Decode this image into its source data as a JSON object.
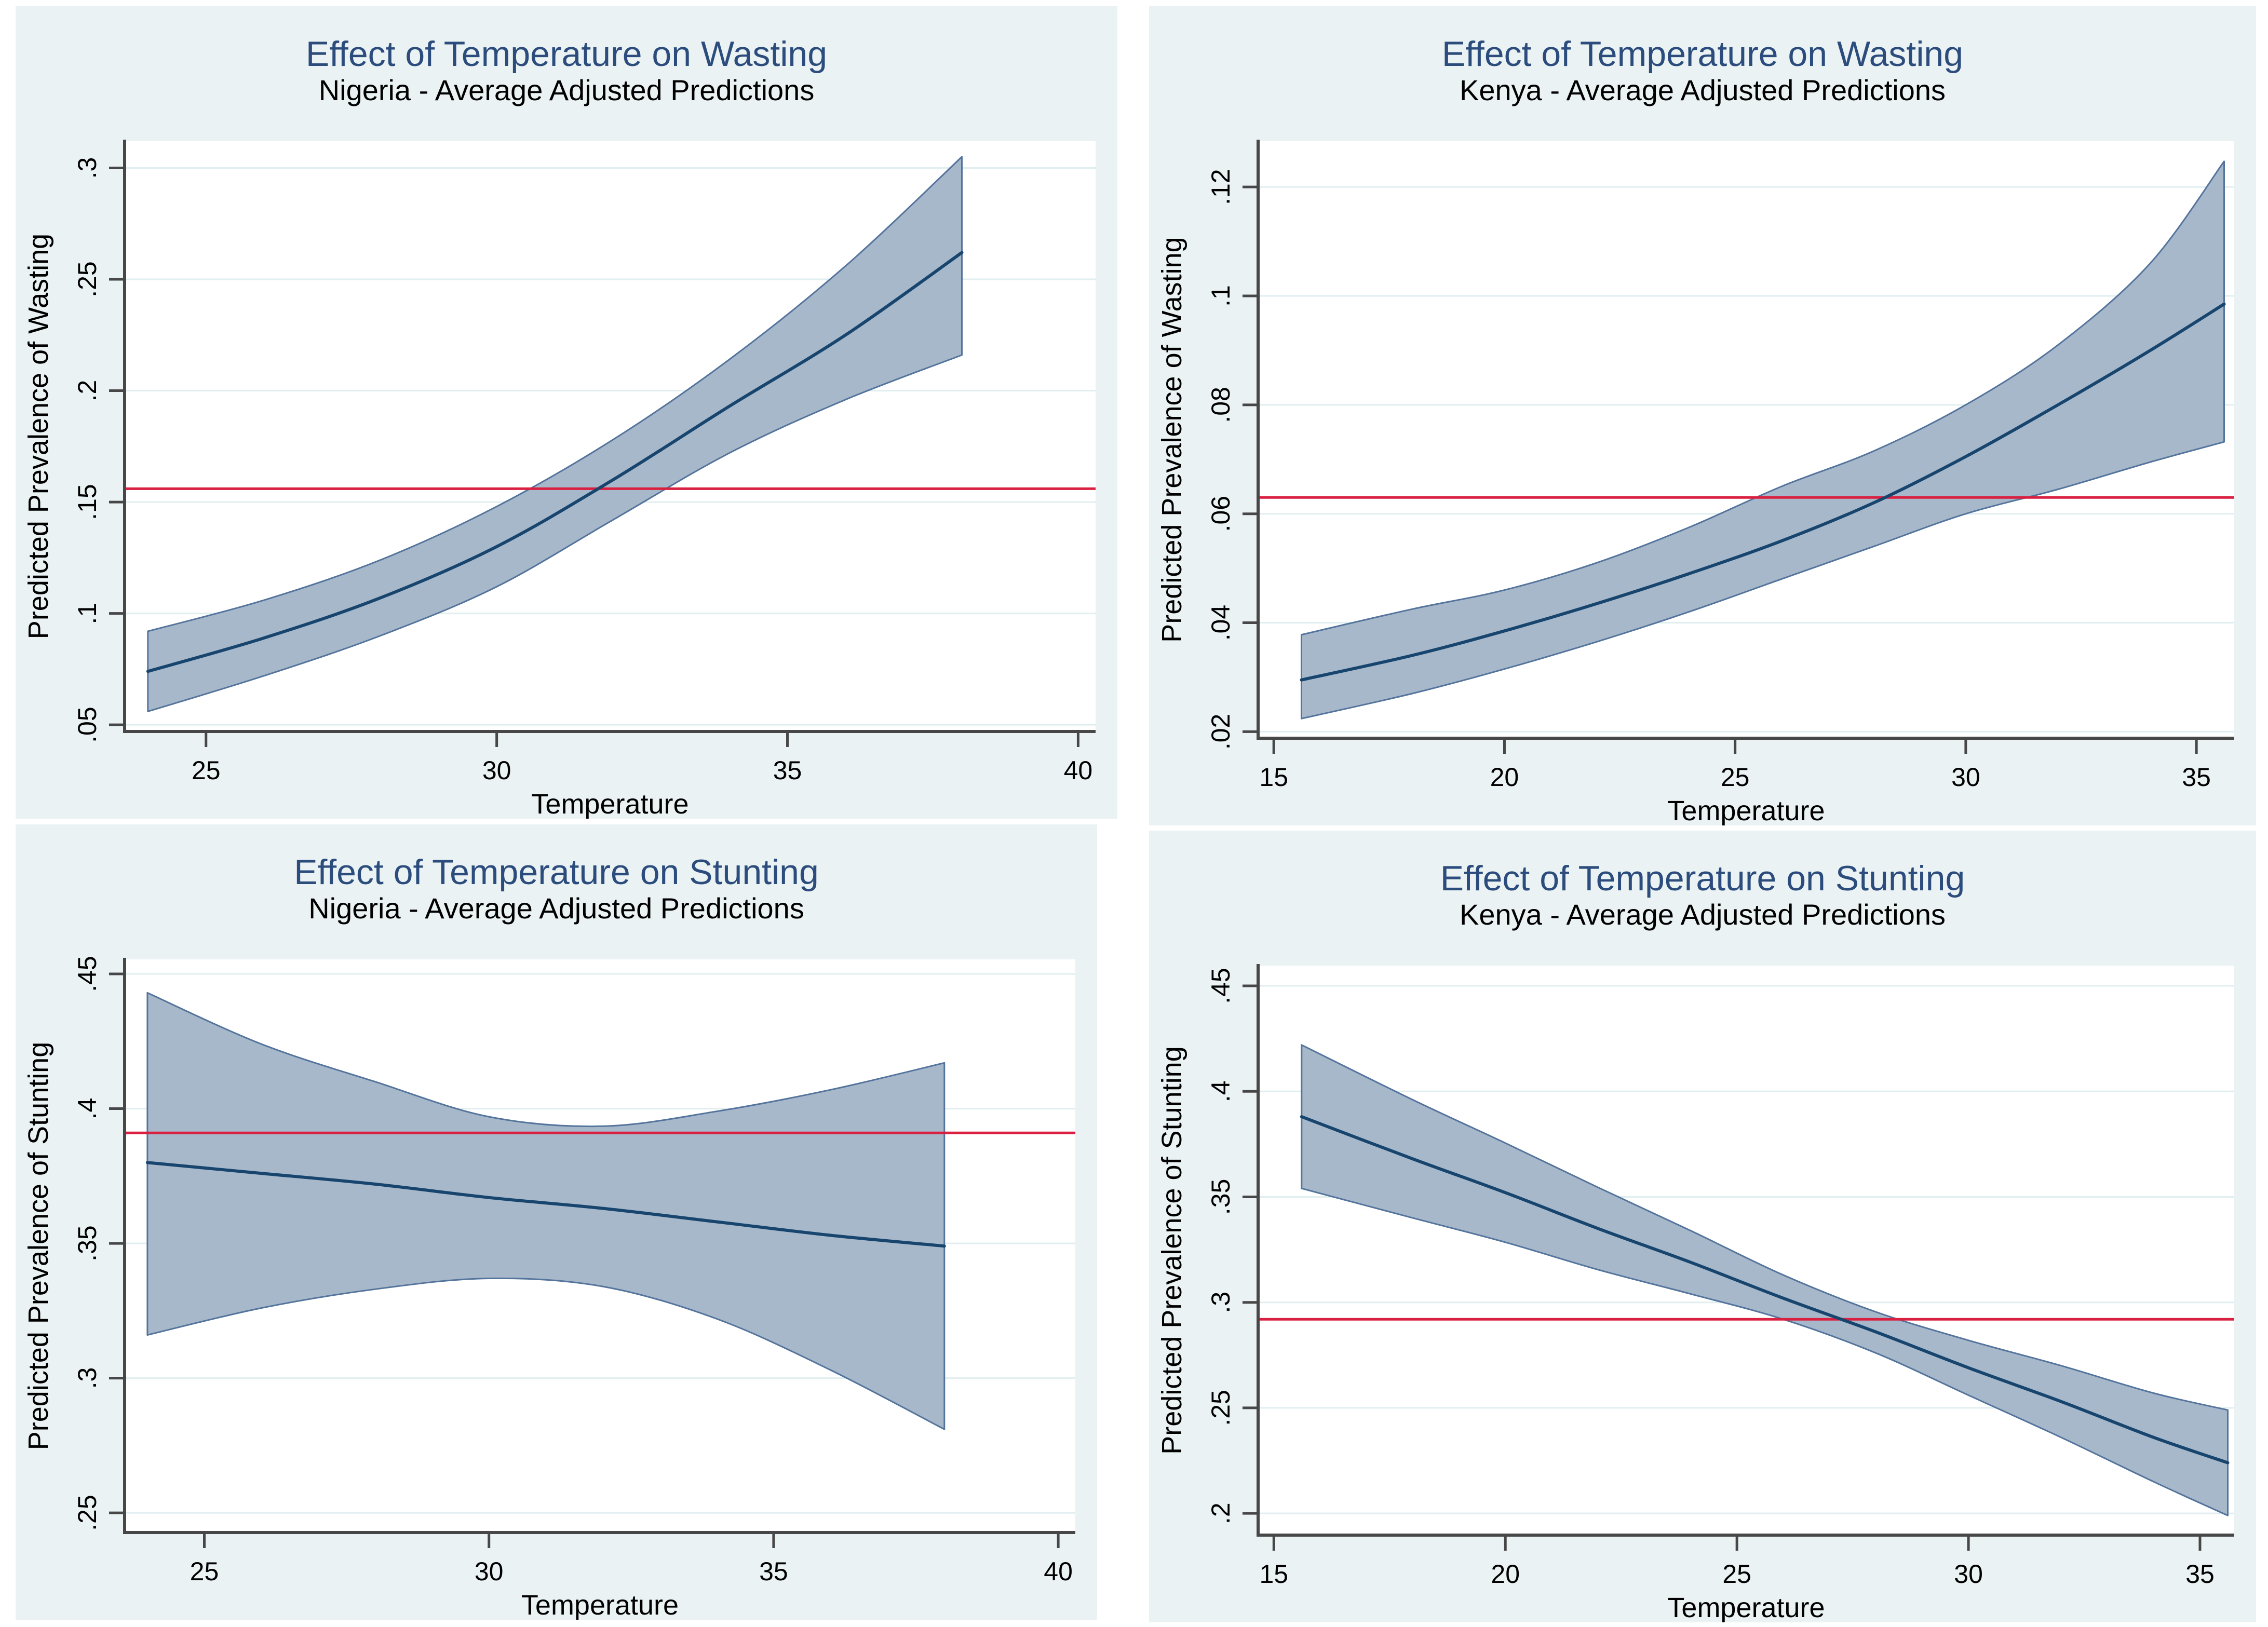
{
  "page": {
    "background": "#ffffff",
    "panel_background": "#eaf2f3"
  },
  "colors": {
    "band_fill": "#a7b8cb",
    "band_edge": "#54749c",
    "mean_line": "#17456e",
    "ref_line": "#da2040",
    "grid": "#e0eef0",
    "axis": "#474747",
    "title": "#2b4c7c",
    "text": "#000000",
    "plot_background": "#ffffff"
  },
  "chart_data": [
    {
      "id": "nigeria-wasting",
      "type": "area",
      "title": "Effect of Temperature on Wasting",
      "subtitle": "Nigeria - Average Adjusted Predictions",
      "xlabel": "Temperature",
      "ylabel": "Predicted Prevalence of Wasting",
      "xlim": [
        23.6,
        40.3
      ],
      "ylim": [
        0.047,
        0.312
      ],
      "xticks": [
        25,
        30,
        35,
        40
      ],
      "xtick_labels": [
        "25",
        "30",
        "35",
        "40"
      ],
      "yticks": [
        0.05,
        0.1,
        0.15,
        0.2,
        0.25,
        0.3
      ],
      "ytick_labels": [
        ".05",
        ".1",
        ".15",
        ".2",
        ".25",
        ".3"
      ],
      "grid": "horizontal",
      "legend": "none",
      "ref_line": 0.156,
      "x": [
        24,
        26,
        28,
        30,
        32,
        34,
        36,
        38
      ],
      "fit": [
        0.074,
        0.089,
        0.107,
        0.13,
        0.16,
        0.193,
        0.225,
        0.262
      ],
      "lo": [
        0.056,
        0.072,
        0.09,
        0.112,
        0.142,
        0.172,
        0.196,
        0.216
      ],
      "hi": [
        0.092,
        0.106,
        0.124,
        0.148,
        0.178,
        0.214,
        0.256,
        0.305
      ]
    },
    {
      "id": "kenya-wasting",
      "type": "area",
      "title": "Effect of Temperature on Wasting",
      "subtitle": "Kenya - Average Adjusted Predictions",
      "xlabel": "Temperature",
      "ylabel": "Predicted Prevalence of Wasting",
      "xlim": [
        14.66,
        35.82
      ],
      "ylim": [
        0.0188,
        0.1284
      ],
      "xticks": [
        15,
        20,
        25,
        30,
        35
      ],
      "xtick_labels": [
        "15",
        "20",
        "25",
        "30",
        "35"
      ],
      "yticks": [
        0.02,
        0.04,
        0.06,
        0.08,
        0.1,
        0.12
      ],
      "ytick_labels": [
        ".02",
        ".04",
        ".06",
        ".08",
        ".1",
        ".12"
      ],
      "grid": "horizontal",
      "legend": "none",
      "ref_line": 0.063,
      "x": [
        15.6,
        18,
        20,
        22,
        24,
        26,
        28,
        30,
        32,
        34,
        35.6
      ],
      "fit": [
        0.0295,
        0.034,
        0.0385,
        0.0435,
        0.049,
        0.055,
        0.062,
        0.0705,
        0.08,
        0.09,
        0.0985
      ],
      "lo": [
        0.0224,
        0.027,
        0.0315,
        0.0365,
        0.042,
        0.048,
        0.054,
        0.06,
        0.0645,
        0.0695,
        0.0732
      ],
      "hi": [
        0.0378,
        0.0425,
        0.046,
        0.051,
        0.0575,
        0.065,
        0.0715,
        0.08,
        0.091,
        0.106,
        0.1247
      ]
    },
    {
      "id": "nigeria-stunting",
      "type": "area",
      "title": "Effect of Temperature on Stunting",
      "subtitle": "Nigeria - Average Adjusted Predictions",
      "xlabel": "Temperature",
      "ylabel": "Predicted Prevalence of Stunting",
      "xlim": [
        23.6,
        40.3
      ],
      "ylim": [
        0.2427,
        0.4554
      ],
      "xticks": [
        25,
        30,
        35,
        40
      ],
      "xtick_labels": [
        "25",
        "30",
        "35",
        "40"
      ],
      "yticks": [
        0.25,
        0.3,
        0.35,
        0.4,
        0.45
      ],
      "ytick_labels": [
        ".25",
        ".3",
        ".35",
        ".4",
        ".45"
      ],
      "grid": "horizontal",
      "legend": "none",
      "ref_line": 0.391,
      "x": [
        24,
        26,
        28,
        30,
        32,
        34,
        36,
        38
      ],
      "fit": [
        0.38,
        0.376,
        0.372,
        0.367,
        0.363,
        0.358,
        0.353,
        0.349
      ],
      "lo": [
        0.316,
        0.326,
        0.333,
        0.337,
        0.334,
        0.322,
        0.303,
        0.281
      ],
      "hi": [
        0.443,
        0.424,
        0.41,
        0.397,
        0.3935,
        0.399,
        0.407,
        0.417
      ]
    },
    {
      "id": "kenya-stunting",
      "type": "area",
      "title": "Effect of Temperature on Stunting",
      "subtitle": "Kenya - Average Adjusted Predictions",
      "xlabel": "Temperature",
      "ylabel": "Predicted Prevalence of Stunting",
      "xlim": [
        14.66,
        35.74
      ],
      "ylim": [
        0.1897,
        0.4596
      ],
      "xticks": [
        15,
        20,
        25,
        30,
        35
      ],
      "xtick_labels": [
        "15",
        "20",
        "25",
        "30",
        "35"
      ],
      "yticks": [
        0.2,
        0.25,
        0.3,
        0.35,
        0.4,
        0.45
      ],
      "ytick_labels": [
        ".2",
        ".25",
        ".3",
        ".35",
        ".4",
        ".45"
      ],
      "grid": "horizontal",
      "legend": "none",
      "ref_line": 0.292,
      "x": [
        15.6,
        18,
        20,
        22,
        24,
        26,
        28,
        30,
        32,
        34,
        35.6
      ],
      "fit": [
        0.388,
        0.368,
        0.352,
        0.335,
        0.319,
        0.302,
        0.286,
        0.269,
        0.253,
        0.236,
        0.224
      ],
      "lo": [
        0.354,
        0.34,
        0.3285,
        0.3155,
        0.304,
        0.292,
        0.276,
        0.256,
        0.236,
        0.215,
        0.199
      ],
      "hi": [
        0.422,
        0.396,
        0.3755,
        0.3545,
        0.334,
        0.313,
        0.2955,
        0.282,
        0.27,
        0.257,
        0.249
      ]
    }
  ]
}
